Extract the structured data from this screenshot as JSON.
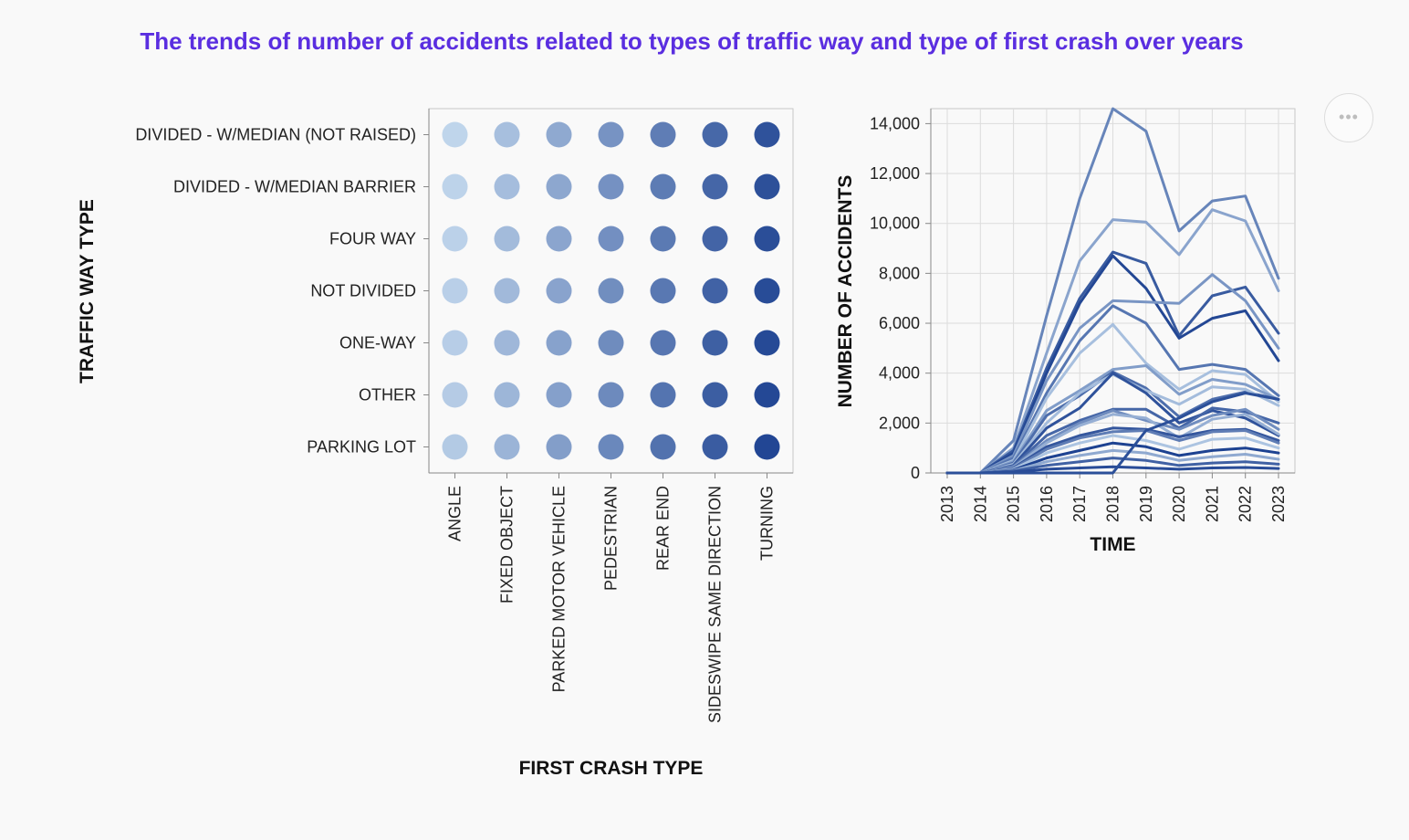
{
  "title": "The trends of number of accidents related to types of traffic way and type of first crash over years",
  "menu": {
    "icon": "more-icon",
    "label": "•••"
  },
  "colors": {
    "title": "#5a2ee0",
    "scale_light": "#c6dbef",
    "scale_dark": "#1a3f8f"
  },
  "chart_data": [
    {
      "type": "scatter",
      "xlabel": "FIRST CRASH TYPE",
      "ylabel": "TRAFFIC WAY TYPE",
      "categories_x": [
        "ANGLE",
        "FIXED OBJECT",
        "PARKED MOTOR VEHICLE",
        "PEDESTRIAN",
        "REAR END",
        "SIDESWIPE SAME DIRECTION",
        "TURNING"
      ],
      "categories_y": [
        "DIVIDED - W/MEDIAN (NOT RAISED)",
        "DIVIDED - W/MEDIAN BARRIER",
        "FOUR WAY",
        "NOT DIVIDED",
        "ONE-WAY",
        "OTHER",
        "PARKING LOT"
      ],
      "grid": false
    },
    {
      "type": "line",
      "xlabel": "TIME",
      "ylabel": "NUMBER OF ACCIDENTS",
      "x": [
        2013,
        2014,
        2015,
        2016,
        2017,
        2018,
        2019,
        2020,
        2021,
        2022,
        2023
      ],
      "y_ticks": [
        "0",
        "2,000",
        "4,000",
        "6,000",
        "8,000",
        "10,000",
        "12,000",
        "14,000"
      ],
      "ylim": [
        0,
        14600
      ],
      "grid": true,
      "series": [
        {
          "values": [
            0,
            0,
            1300,
            6300,
            11000,
            14600,
            13700,
            9700,
            10900,
            11100,
            7800
          ],
          "shade": 0.55
        },
        {
          "values": [
            0,
            0,
            1000,
            4800,
            8500,
            10150,
            10050,
            8750,
            10550,
            10100,
            7300
          ],
          "shade": 0.35
        },
        {
          "values": [
            0,
            0,
            900,
            4200,
            7000,
            8850,
            8400,
            5500,
            7100,
            7450,
            5600
          ],
          "shade": 0.82
        },
        {
          "values": [
            0,
            0,
            800,
            4000,
            6800,
            8700,
            7400,
            5400,
            6200,
            6500,
            4500
          ],
          "shade": 0.95
        },
        {
          "values": [
            0,
            0,
            700,
            3700,
            5800,
            6900,
            6850,
            6800,
            7950,
            6900,
            5000
          ],
          "shade": 0.45
        },
        {
          "values": [
            0,
            0,
            600,
            3200,
            5300,
            6700,
            6000,
            4150,
            4350,
            4150,
            3100
          ],
          "shade": 0.65
        },
        {
          "values": [
            0,
            0,
            500,
            3000,
            4800,
            5950,
            4400,
            3350,
            4100,
            3950,
            2850
          ],
          "shade": 0.18
        },
        {
          "values": [
            0,
            0,
            450,
            2500,
            3300,
            4150,
            4300,
            3150,
            3750,
            3550,
            2950
          ],
          "shade": 0.4
        },
        {
          "values": [
            0,
            0,
            400,
            2300,
            3100,
            4050,
            3400,
            2250,
            2950,
            3250,
            2950
          ],
          "shade": 0.7
        },
        {
          "values": [
            0,
            0,
            350,
            2000,
            3200,
            3950,
            3300,
            2750,
            3450,
            3350,
            2700
          ],
          "shade": 0.2
        },
        {
          "values": [
            0,
            0,
            300,
            1800,
            2600,
            4000,
            3200,
            2000,
            2500,
            2200,
            1500
          ],
          "shade": 0.88
        },
        {
          "values": [
            0,
            0,
            280,
            1500,
            2100,
            2550,
            2550,
            1800,
            2600,
            2450,
            2000
          ],
          "shade": 0.75
        },
        {
          "values": [
            0,
            0,
            250,
            1300,
            2000,
            2500,
            2100,
            1750,
            2300,
            2550,
            1750
          ],
          "shade": 0.5
        },
        {
          "values": [
            0,
            0,
            220,
            1200,
            1900,
            2350,
            2200,
            1400,
            2150,
            2350,
            1550
          ],
          "shade": 0.28
        },
        {
          "values": [
            0,
            0,
            200,
            1050,
            1500,
            1800,
            1750,
            1450,
            1700,
            1750,
            1300
          ],
          "shade": 0.85
        },
        {
          "values": [
            0,
            0,
            180,
            950,
            1400,
            1650,
            1700,
            1300,
            1650,
            1700,
            1200
          ],
          "shade": 0.6
        },
        {
          "values": [
            0,
            0,
            150,
            800,
            1200,
            1500,
            1300,
            950,
            1350,
            1400,
            1000
          ],
          "shade": 0.15
        },
        {
          "values": [
            0,
            0,
            120,
            600,
            900,
            1200,
            1050,
            700,
            900,
            1000,
            800
          ],
          "shade": 0.98
        },
        {
          "values": [
            0,
            0,
            100,
            450,
            700,
            900,
            800,
            500,
            650,
            750,
            550
          ],
          "shade": 0.32
        },
        {
          "values": [
            0,
            0,
            80,
            300,
            450,
            600,
            500,
            300,
            400,
            450,
            350
          ],
          "shade": 0.78
        },
        {
          "values": [
            0,
            0,
            40,
            150,
            200,
            250,
            200,
            150,
            200,
            220,
            180
          ],
          "shade": 0.92
        },
        {
          "values": [
            0,
            0,
            0,
            0,
            0,
            0,
            1700,
            2200,
            2850,
            3200,
            2950
          ],
          "shade": 0.9
        }
      ]
    }
  ]
}
